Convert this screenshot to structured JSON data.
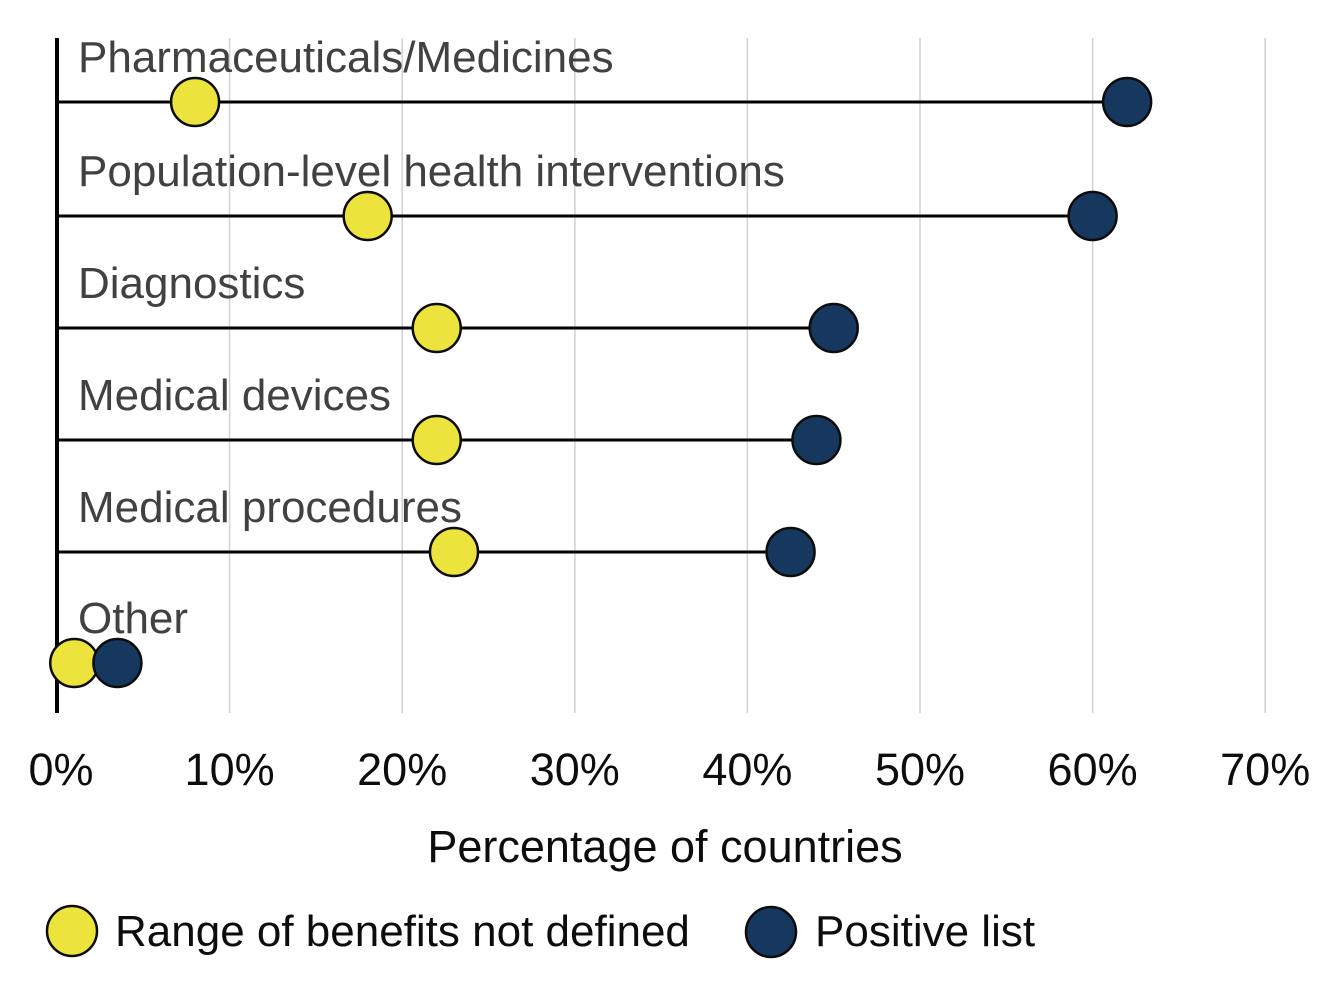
{
  "chart_data": {
    "type": "scatter",
    "subtype": "dumbbell",
    "categories": [
      "Pharmaceuticals/Medicines",
      "Population-level health interventions",
      "Diagnostics",
      "Medical devices",
      "Medical procedures",
      "Other"
    ],
    "series": [
      {
        "name": "Range of benefits not defined",
        "color": "#ece43c",
        "values": [
          8,
          18,
          22,
          22,
          23,
          1
        ]
      },
      {
        "name": "Positive list",
        "color": "#16375e",
        "values": [
          62,
          60,
          45,
          44,
          42.5,
          3.5
        ]
      }
    ],
    "xlabel": "Percentage of countries",
    "x_ticks": [
      "0%",
      "10%",
      "20%",
      "30%",
      "40%",
      "50%",
      "60%",
      "70%"
    ],
    "x_tick_values": [
      0,
      10,
      20,
      30,
      40,
      50,
      60,
      70
    ],
    "xlim": [
      0,
      74
    ],
    "grid": "vertical-only",
    "legend_position": "bottom"
  },
  "colors": {
    "yellow_marker": "#ece43c",
    "navy_marker": "#16375e",
    "marker_outline": "#0c0c0c",
    "gridline": "#d2d2d2",
    "axis_line": "#000000",
    "stem_line": "#000000",
    "category_text": "#414141",
    "tick_text": "#0d0d0d",
    "background": "#ffffff"
  }
}
